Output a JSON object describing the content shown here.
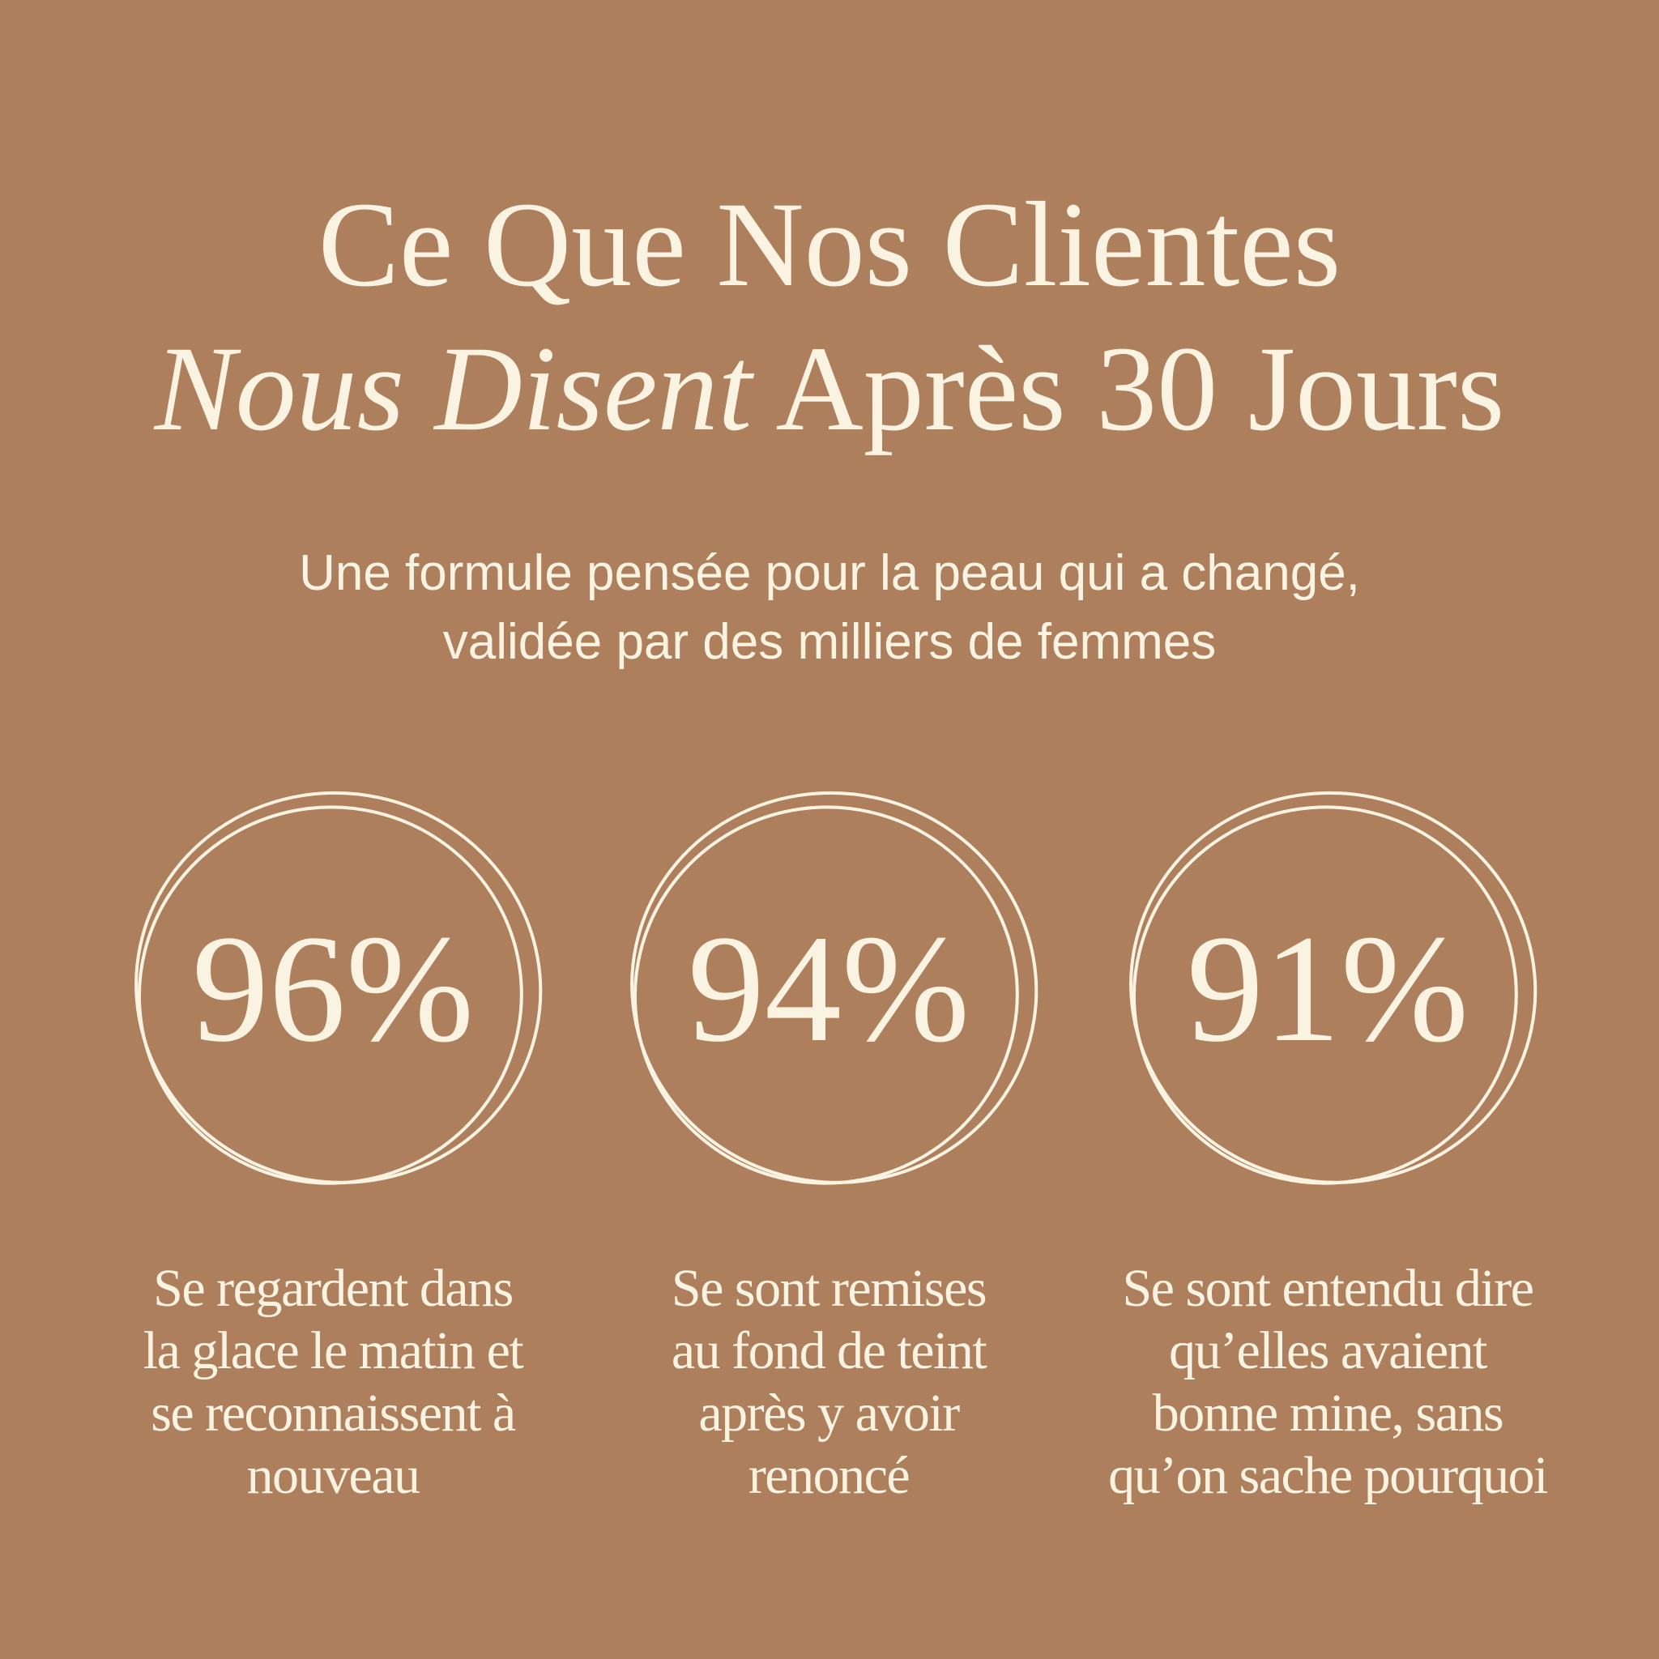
{
  "header": {
    "title_line1": "Ce Que Nos Clientes",
    "title_italic": "Nous Disent",
    "title_rest": "Après 30 Jours",
    "subtitle_lines": [
      "Une formule pensée pour la peau qui a changé,",
      "validée par des milliers de femmes"
    ]
  },
  "stats": [
    {
      "value": "96%",
      "lines": [
        "Se regardent dans",
        "la glace le matin et",
        "se reconnaissent à",
        "nouveau"
      ]
    },
    {
      "value": "94%",
      "lines": [
        "Se sont remises",
        "au fond de teint",
        "après y avoir",
        "renoncé"
      ]
    },
    {
      "value": "91%",
      "lines": [
        "Se sont entendu dire",
        "qu’elles avaient",
        "bonne mine, sans",
        "qu’on sache pourquoi"
      ]
    }
  ]
}
